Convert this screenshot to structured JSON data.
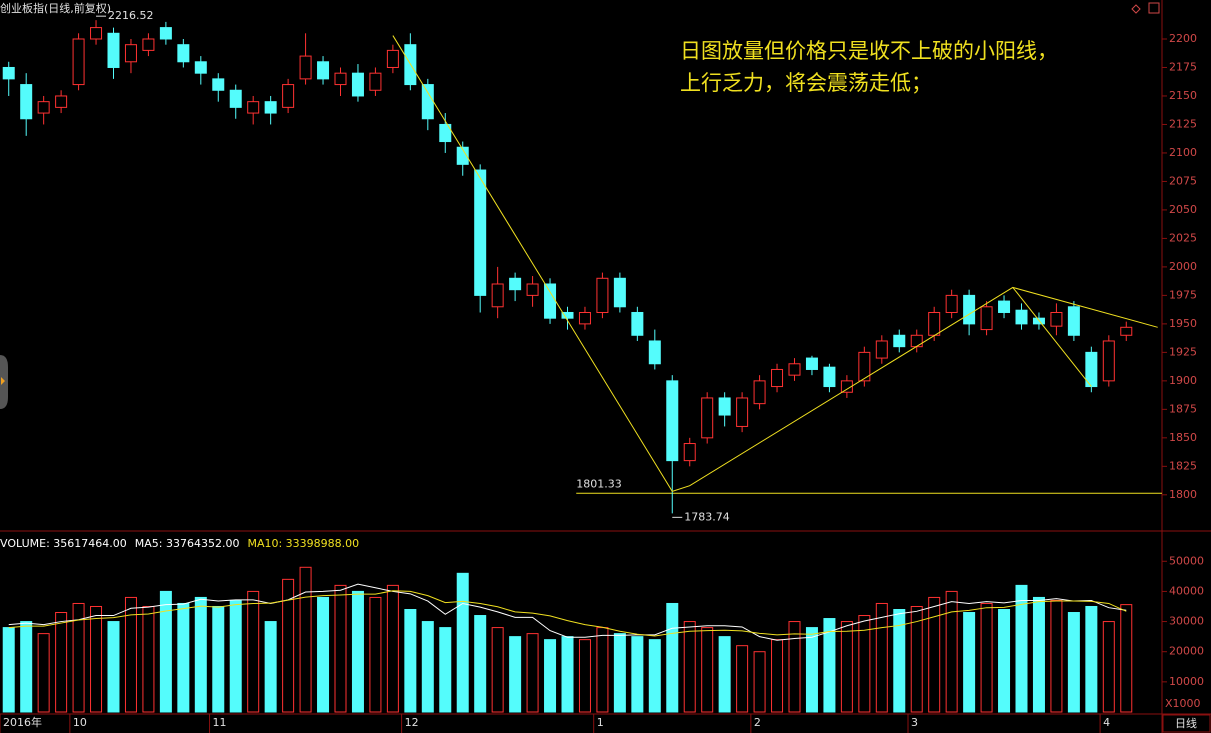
{
  "header": {
    "title": "创业板指(日线,前复权)",
    "period": "日线"
  },
  "annotation": {
    "lines": [
      "日图放量但价格只是收不上破的小阳线，",
      "上行乏力，将会震荡走低；"
    ]
  },
  "chart_data": [
    {
      "type": "candlestick",
      "up_color": "#ff3232",
      "down_color": "#54fcfc",
      "open": [
        2175,
        2160,
        2135,
        2140,
        2160,
        2200,
        2205,
        2180,
        2190,
        2210,
        2195,
        2180,
        2165,
        2155,
        2135,
        2145,
        2140,
        2165,
        2180,
        2160,
        2170,
        2155,
        2175,
        2195,
        2160,
        2125,
        2105,
        2085,
        1965,
        1990,
        1975,
        1985,
        1960,
        1950,
        1960,
        1990,
        1960,
        1935,
        1900,
        1830,
        1850,
        1885,
        1860,
        1880,
        1895,
        1905,
        1920,
        1912,
        1890,
        1900,
        1920,
        1940,
        1930,
        1940,
        1960,
        1975,
        1945,
        1970,
        1962,
        1955,
        1948,
        1965,
        1925,
        1900,
        1940
      ],
      "high": [
        2180,
        2170,
        2150,
        2155,
        2205,
        2216.52,
        2210,
        2200,
        2205,
        2215,
        2200,
        2185,
        2170,
        2160,
        2150,
        2150,
        2165,
        2205,
        2185,
        2175,
        2178,
        2175,
        2195,
        2205,
        2165,
        2135,
        2110,
        2090,
        2000,
        1995,
        1992,
        1990,
        1965,
        1965,
        1995,
        1995,
        1965,
        1945,
        1905,
        1850,
        1890,
        1890,
        1890,
        1905,
        1915,
        1920,
        1922,
        1915,
        1905,
        1930,
        1940,
        1945,
        1945,
        1965,
        1980,
        1980,
        1970,
        1975,
        1968,
        1960,
        1968,
        1970,
        1930,
        1940,
        1952
      ],
      "low": [
        2150,
        2115,
        2125,
        2135,
        2155,
        2195,
        2165,
        2170,
        2185,
        2195,
        2175,
        2160,
        2145,
        2130,
        2125,
        2125,
        2135,
        2160,
        2160,
        2150,
        2145,
        2150,
        2170,
        2155,
        2120,
        2100,
        2080,
        1960,
        1955,
        1970,
        1965,
        1950,
        1945,
        1945,
        1955,
        1960,
        1935,
        1910,
        1783.74,
        1825,
        1845,
        1860,
        1855,
        1875,
        1890,
        1900,
        1905,
        1890,
        1885,
        1895,
        1915,
        1925,
        1925,
        1935,
        1955,
        1940,
        1940,
        1955,
        1945,
        1945,
        1940,
        1935,
        1890,
        1895,
        1935
      ],
      "close": [
        2165,
        2130,
        2145,
        2150,
        2200,
        2210,
        2175,
        2195,
        2200,
        2200,
        2180,
        2170,
        2155,
        2140,
        2145,
        2135,
        2160,
        2185,
        2165,
        2170,
        2150,
        2170,
        2190,
        2160,
        2130,
        2110,
        2090,
        1975,
        1985,
        1980,
        1985,
        1955,
        1955,
        1960,
        1990,
        1965,
        1940,
        1915,
        1830,
        1845,
        1885,
        1870,
        1885,
        1900,
        1910,
        1915,
        1910,
        1895,
        1900,
        1925,
        1935,
        1930,
        1940,
        1960,
        1975,
        1950,
        1965,
        1960,
        1950,
        1950,
        1960,
        1940,
        1895,
        1935,
        1947
      ],
      "ylim": [
        1770,
        2225
      ],
      "yticks": [
        1800,
        1825,
        1850,
        1875,
        1900,
        1925,
        1950,
        1975,
        2000,
        2025,
        2050,
        2075,
        2100,
        2125,
        2150,
        2175,
        2200
      ],
      "high_label": 2216.52,
      "low_label": 1783.74,
      "hline": {
        "value": 1801.33,
        "color": "#f0e020"
      },
      "trend_color": "#f0e020",
      "trend_lines": [
        {
          "x": [
            22,
            38,
            39,
            57.5,
            65.8
          ],
          "y": [
            2203,
            1803,
            1808,
            1982,
            1947
          ]
        },
        {
          "x": [
            57.5,
            62
          ],
          "y": [
            1982,
            1895
          ]
        }
      ]
    },
    {
      "type": "bar",
      "categories": [
        "2016年",
        null,
        null,
        null,
        "10",
        null,
        null,
        null,
        null,
        null,
        null,
        null,
        "11",
        null,
        null,
        null,
        null,
        null,
        null,
        null,
        null,
        null,
        null,
        "12",
        null,
        null,
        null,
        null,
        null,
        null,
        null,
        null,
        null,
        null,
        "1",
        null,
        null,
        null,
        null,
        null,
        null,
        null,
        null,
        "2",
        null,
        null,
        null,
        null,
        null,
        null,
        null,
        null,
        "3",
        null,
        null,
        null,
        null,
        null,
        null,
        null,
        null,
        null,
        null,
        "4",
        null
      ],
      "unit_label": "X1000",
      "ylim": [
        0,
        54400
      ],
      "yticks": [
        10000,
        20000,
        30000,
        40000,
        50000
      ],
      "series": [
        {
          "name": "VOLUME: 35617464.00",
          "color": "#ffffff",
          "values": [
            28000,
            30000,
            26000,
            33000,
            36000,
            35000,
            30000,
            38000,
            35000,
            40000,
            36000,
            38000,
            35000,
            37000,
            40000,
            30000,
            44000,
            48000,
            38000,
            42000,
            40000,
            38000,
            42000,
            34000,
            30000,
            28000,
            46000,
            32000,
            28000,
            25000,
            26000,
            24000,
            25000,
            24000,
            28000,
            26000,
            25000,
            24000,
            36000,
            30000,
            28000,
            25000,
            22000,
            20000,
            24000,
            30000,
            28000,
            31000,
            30000,
            32000,
            36000,
            34000,
            35000,
            38000,
            40000,
            33000,
            36000,
            34000,
            42000,
            38000,
            37000,
            33000,
            35000,
            30000,
            35617.464
          ]
        },
        {
          "name": "MA5: 33764352.00",
          "color": "#ffffff",
          "values": [
            29000,
            29500,
            29000,
            30000,
            30600,
            32000,
            32000,
            34400,
            34800,
            35600,
            35800,
            37400,
            36800,
            37200,
            37200,
            36000,
            37200,
            39800,
            40000,
            40400,
            42400,
            41200,
            40000,
            39200,
            36800,
            32400,
            36000,
            34800,
            33200,
            31400,
            31400,
            27000,
            24800,
            24800,
            25400,
            25400,
            25600,
            25600,
            27800,
            28200,
            28600,
            28600,
            28200,
            25000,
            23800,
            24400,
            24800,
            26600,
            28600,
            30200,
            31400,
            32600,
            33400,
            35000,
            36600,
            36000,
            36600,
            36200,
            37000,
            37000,
            37600,
            36800,
            37000,
            34600,
            33764.352
          ]
        },
        {
          "name": "MA10: 33398988.00",
          "color": "#f0e020",
          "values": [
            28000,
            28500,
            28500,
            29500,
            30500,
            31000,
            31300,
            32200,
            32500,
            33500,
            34300,
            35100,
            34800,
            35600,
            36000,
            36100,
            37100,
            38100,
            38600,
            38800,
            39100,
            39100,
            40200,
            40000,
            38600,
            36300,
            36700,
            36000,
            34900,
            33200,
            32800,
            31900,
            30300,
            29000,
            28100,
            26800,
            25800,
            25200,
            26100,
            26800,
            27000,
            27100,
            26900,
            26100,
            25600,
            25900,
            25800,
            26700,
            26800,
            27100,
            28000,
            28700,
            30000,
            31600,
            33200,
            33700,
            34600,
            34700,
            35700,
            36600,
            36800,
            36800,
            36700,
            36000,
            33398.988
          ]
        }
      ]
    }
  ]
}
